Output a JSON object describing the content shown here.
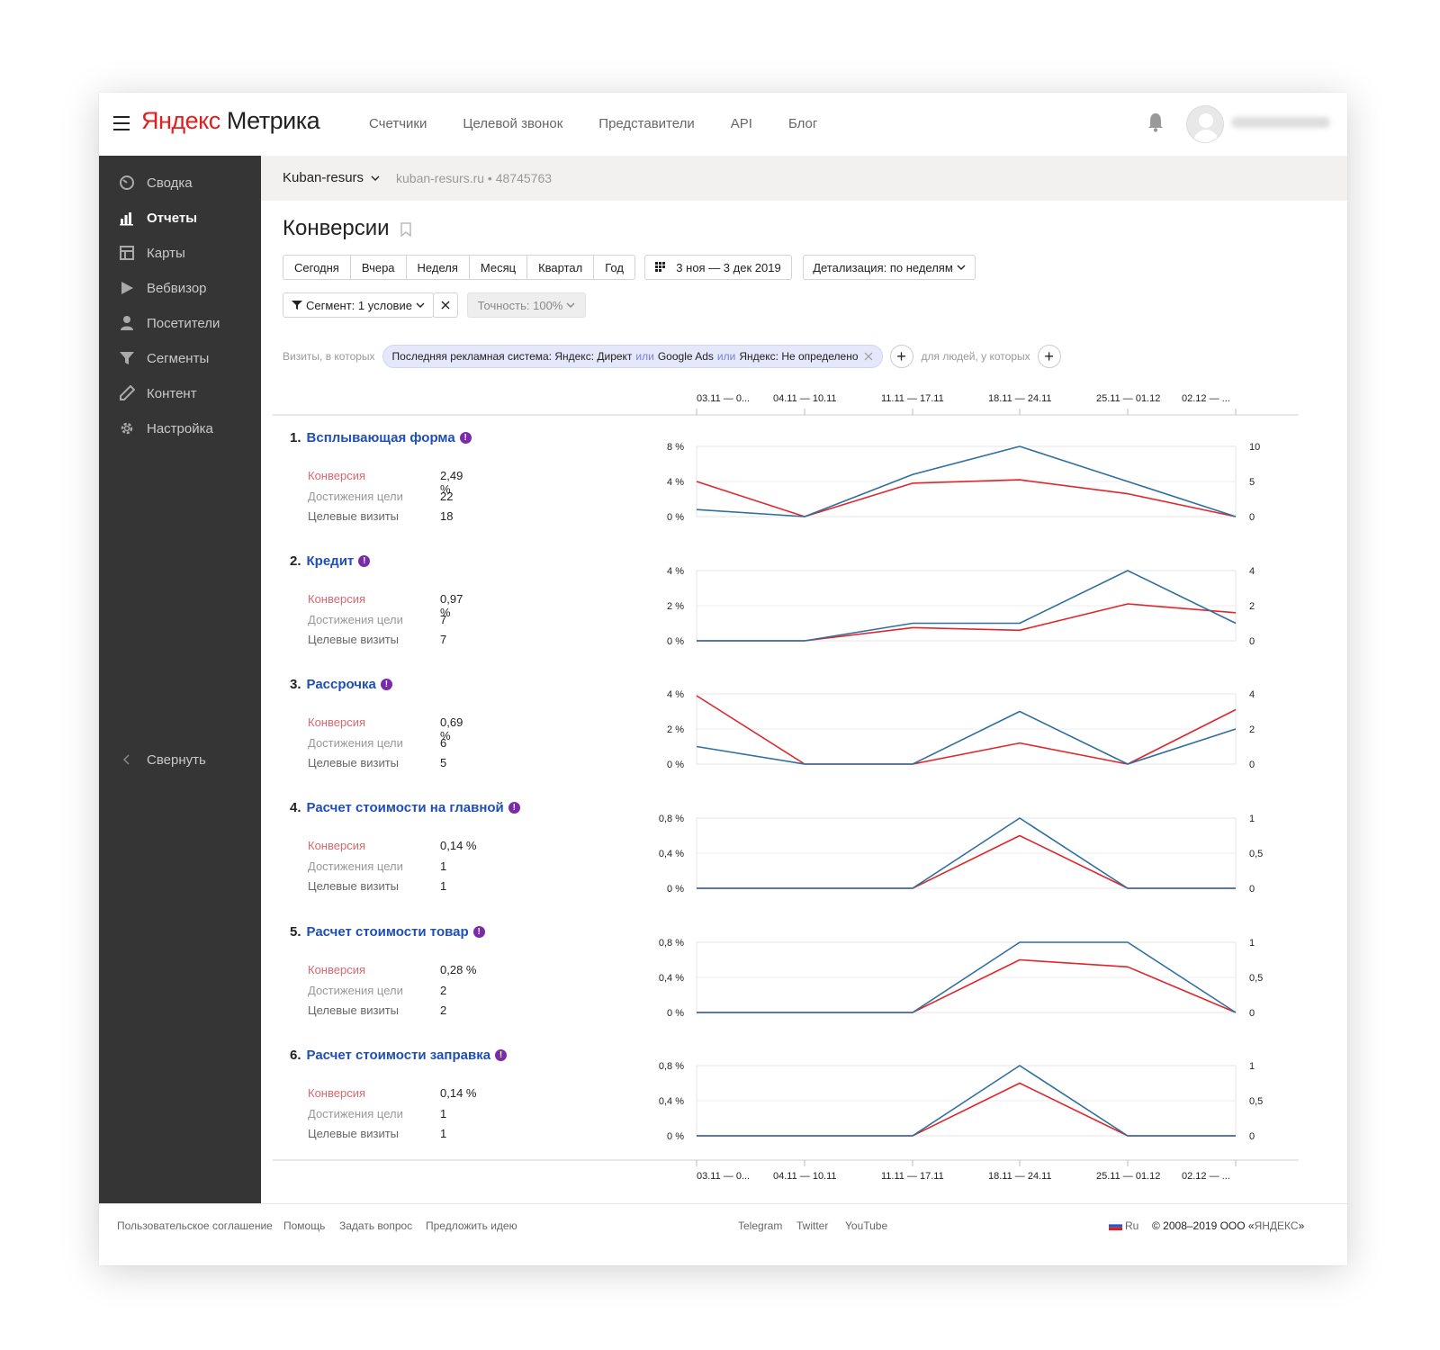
{
  "header": {
    "logo_yandex": "Яндекс",
    "logo_metrika": "Метрика",
    "nav": [
      "Счетчики",
      "Целевой звонок",
      "Представители",
      "API",
      "Блог"
    ]
  },
  "sidebar": {
    "items": [
      {
        "label": "Сводка",
        "icon": "gauge-icon"
      },
      {
        "label": "Отчеты",
        "icon": "bar-chart-icon",
        "active": true
      },
      {
        "label": "Карты",
        "icon": "map-icon"
      },
      {
        "label": "Вебвизор",
        "icon": "play-icon"
      },
      {
        "label": "Посетители",
        "icon": "user-icon"
      },
      {
        "label": "Сегменты",
        "icon": "funnel-icon"
      },
      {
        "label": "Контент",
        "icon": "pencil-icon"
      },
      {
        "label": "Настройка",
        "icon": "gear-icon"
      }
    ],
    "collapse_label": "Свернуть"
  },
  "counter": {
    "name": "Kuban-resurs",
    "info": "kuban-resurs.ru • 48745763"
  },
  "page_title": "Конверсии",
  "periods": [
    "Сегодня",
    "Вчера",
    "Неделя",
    "Месяц",
    "Квартал",
    "Год"
  ],
  "date_range": "3 ноя — 3 дек 2019",
  "detail": "Детализация: по неделям",
  "segment": "Сегмент: 1 условие",
  "accuracy": "Точность: 100%",
  "filter": {
    "prefix": "Визиты, в которых",
    "chip_parts": [
      "Последняя рекламная система: Яндекс: Директ",
      "или",
      "Google Ads",
      "или",
      "Яндекс: Не определено"
    ],
    "people_label": "для людей, у которых"
  },
  "metric_labels": {
    "conversion": "Конверсия",
    "reaches": "Достижения цели",
    "visits": "Целевые визиты"
  },
  "goals": [
    {
      "num": "1.",
      "name": "Всплывающая форма",
      "conversion": "2,49 %",
      "reaches": "22",
      "visits": "18"
    },
    {
      "num": "2.",
      "name": "Кредит",
      "conversion": "0,97 %",
      "reaches": "7",
      "visits": "7"
    },
    {
      "num": "3.",
      "name": "Рассрочка",
      "conversion": "0,69 %",
      "reaches": "6",
      "visits": "5"
    },
    {
      "num": "4.",
      "name": "Расчет стоимости на главной",
      "conversion": "0,14 %",
      "reaches": "1",
      "visits": "1"
    },
    {
      "num": "5.",
      "name": "Расчет стоимости товар",
      "conversion": "0,28 %",
      "reaches": "2",
      "visits": "2"
    },
    {
      "num": "6.",
      "name": "Расчет стоимости заправка",
      "conversion": "0,14 %",
      "reaches": "1",
      "visits": "1"
    }
  ],
  "footer": {
    "left": [
      "Пользовательское соглашение",
      "Помощь",
      "Задать вопрос",
      "Предложить идею"
    ],
    "center": [
      "Telegram",
      "Twitter",
      "YouTube"
    ],
    "lang": "Ru",
    "copyright_prefix": "© 2008–2019 ООО «",
    "copyright_brand": "ЯНДЕКС",
    "copyright_suffix": "»"
  },
  "colors": {
    "conversion_line": "#e0262b",
    "visits_line": "#2f6f9f",
    "sidebar_bg": "#353535",
    "link": "#1f4fb5"
  },
  "chart_data": [
    {
      "type": "line",
      "categories": [
        "03.11 — 0...",
        "04.11 — 10.11",
        "11.11 — 17.11",
        "18.11 — 24.11",
        "25.11 — 01.12",
        "02.12 — ..."
      ],
      "y_left_ticks": [
        "0 %",
        "4 %",
        "8 %"
      ],
      "ylim_left": [
        0,
        8
      ],
      "y_right_ticks": [
        "0",
        "5",
        "10"
      ],
      "ylim_right": [
        0,
        10
      ],
      "series": [
        {
          "axis": "left",
          "color": "#e0262b",
          "values": [
            4,
            0,
            3.8,
            4.2,
            2.6,
            0
          ]
        },
        {
          "axis": "right",
          "color": "#2f6f9f",
          "values": [
            1,
            0,
            6,
            10,
            5,
            0
          ]
        }
      ]
    },
    {
      "type": "line",
      "categories": [
        "03.11 — 0...",
        "04.11 — 10.11",
        "11.11 — 17.11",
        "18.11 — 24.11",
        "25.11 — 01.12",
        "02.12 — ..."
      ],
      "y_left_ticks": [
        "0 %",
        "2 %",
        "4 %"
      ],
      "ylim_left": [
        0,
        4
      ],
      "y_right_ticks": [
        "0",
        "2",
        "4"
      ],
      "ylim_right": [
        0,
        4
      ],
      "series": [
        {
          "axis": "left",
          "color": "#e0262b",
          "values": [
            0,
            0,
            0.75,
            0.6,
            2.1,
            1.6
          ]
        },
        {
          "axis": "right",
          "color": "#2f6f9f",
          "values": [
            0,
            0,
            1,
            1,
            4,
            1
          ]
        }
      ]
    },
    {
      "type": "line",
      "categories": [
        "03.11 — 0...",
        "04.11 — 10.11",
        "11.11 — 17.11",
        "18.11 — 24.11",
        "25.11 — 01.12",
        "02.12 — ..."
      ],
      "y_left_ticks": [
        "0 %",
        "2 %",
        "4 %"
      ],
      "ylim_left": [
        0,
        4
      ],
      "y_right_ticks": [
        "0",
        "2",
        "4"
      ],
      "ylim_right": [
        0,
        4
      ],
      "series": [
        {
          "axis": "left",
          "color": "#e0262b",
          "values": [
            3.9,
            0,
            0,
            1.2,
            0,
            3.1
          ]
        },
        {
          "axis": "right",
          "color": "#2f6f9f",
          "values": [
            1,
            0,
            0,
            3,
            0,
            2
          ]
        }
      ]
    },
    {
      "type": "line",
      "categories": [
        "03.11 — 0...",
        "04.11 — 10.11",
        "11.11 — 17.11",
        "18.11 — 24.11",
        "25.11 — 01.12",
        "02.12 — ..."
      ],
      "y_left_ticks": [
        "0 %",
        "0,4 %",
        "0,8 %"
      ],
      "ylim_left": [
        0,
        0.8
      ],
      "y_right_ticks": [
        "0",
        "0,5",
        "1"
      ],
      "ylim_right": [
        0,
        1
      ],
      "series": [
        {
          "axis": "left",
          "color": "#e0262b",
          "values": [
            0,
            0,
            0,
            0.6,
            0,
            0
          ]
        },
        {
          "axis": "right",
          "color": "#2f6f9f",
          "values": [
            0,
            0,
            0,
            1,
            0,
            0
          ]
        }
      ]
    },
    {
      "type": "line",
      "categories": [
        "03.11 — 0...",
        "04.11 — 10.11",
        "11.11 — 17.11",
        "18.11 — 24.11",
        "25.11 — 01.12",
        "02.12 — ..."
      ],
      "y_left_ticks": [
        "0 %",
        "0,4 %",
        "0,8 %"
      ],
      "ylim_left": [
        0,
        0.8
      ],
      "y_right_ticks": [
        "0",
        "0,5",
        "1"
      ],
      "ylim_right": [
        0,
        1
      ],
      "series": [
        {
          "axis": "left",
          "color": "#e0262b",
          "values": [
            0,
            0,
            0,
            0.6,
            0.52,
            0
          ]
        },
        {
          "axis": "right",
          "color": "#2f6f9f",
          "values": [
            0,
            0,
            0,
            1,
            1,
            0
          ]
        }
      ]
    },
    {
      "type": "line",
      "categories": [
        "03.11 — 0...",
        "04.11 — 10.11",
        "11.11 — 17.11",
        "18.11 — 24.11",
        "25.11 — 01.12",
        "02.12 — ..."
      ],
      "y_left_ticks": [
        "0 %",
        "0,4 %",
        "0,8 %"
      ],
      "ylim_left": [
        0,
        0.8
      ],
      "y_right_ticks": [
        "0",
        "0,5",
        "1"
      ],
      "ylim_right": [
        0,
        1
      ],
      "series": [
        {
          "axis": "left",
          "color": "#e0262b",
          "values": [
            0,
            0,
            0,
            0.6,
            0,
            0
          ]
        },
        {
          "axis": "right",
          "color": "#2f6f9f",
          "values": [
            0,
            0,
            0,
            1,
            0,
            0
          ]
        }
      ]
    }
  ]
}
